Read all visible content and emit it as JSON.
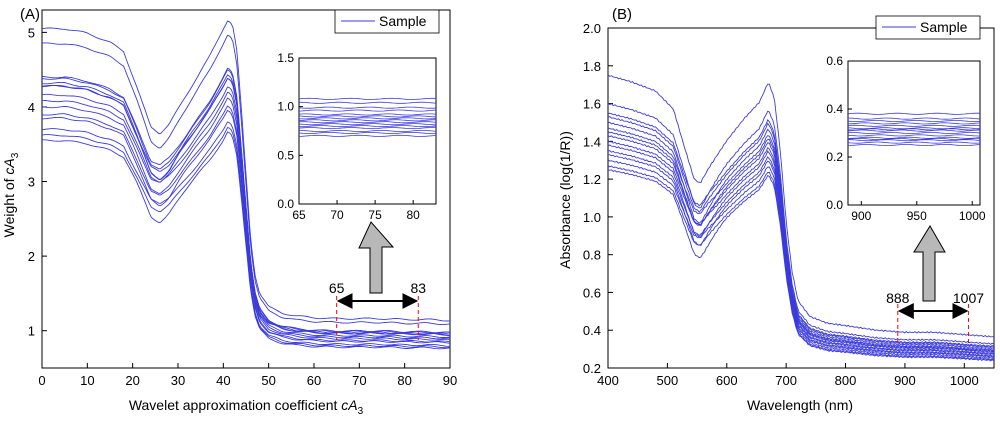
{
  "chart_data": [
    {
      "panel_label": "(A)",
      "type": "line",
      "title": "",
      "xlabel": "Wavelet approximation coefficient cA3",
      "xlabel_main": "Wavelet approximation coefficient ",
      "xlabel_var": "cA",
      "xlabel_sub": "3",
      "ylabel_main": "Weight of ",
      "ylabel_var": "cA",
      "ylabel_sub": "3",
      "xlim": [
        0,
        90
      ],
      "ylim": [
        0.5,
        5.3
      ],
      "xticks": [
        0,
        10,
        20,
        30,
        40,
        50,
        60,
        70,
        80,
        90
      ],
      "yticks": [
        1,
        2,
        3,
        4,
        5
      ],
      "legend": "Sample",
      "legend_position": "top-right",
      "color": "#3b3bdc",
      "profile": {
        "x": [
          0,
          5,
          10,
          15,
          18,
          21,
          24,
          26,
          28,
          31,
          34,
          37,
          40,
          41,
          42,
          43,
          44,
          45,
          46,
          47,
          48,
          50,
          53,
          56,
          60,
          65,
          70,
          75,
          80,
          85,
          90
        ],
        "y": [
          4.1,
          4.1,
          4.05,
          3.95,
          3.85,
          3.45,
          3.02,
          2.95,
          3.05,
          3.3,
          3.55,
          3.8,
          4.1,
          4.22,
          4.15,
          3.85,
          3.2,
          2.5,
          1.8,
          1.4,
          1.2,
          1.05,
          0.98,
          0.95,
          0.93,
          0.92,
          0.92,
          0.92,
          0.91,
          0.91,
          0.9
        ]
      },
      "series_variation": {
        "offsets": [
          0.95,
          0.75,
          0.3,
          0.28,
          0.22,
          0.18,
          0.18,
          0.06,
          -0.02,
          -0.1,
          -0.2,
          -0.25,
          -0.4,
          -0.48,
          -0.55
        ],
        "dip_extra": [
          0.0,
          -0.05,
          0.05,
          0.0,
          -0.1,
          0.05,
          -0.05,
          0.0,
          0.05,
          -0.05,
          0.0,
          -0.1,
          0.05,
          0.0,
          -0.1
        ]
      },
      "markers": {
        "start": 65,
        "end": 83,
        "start_label": "65",
        "end_label": "83"
      },
      "inset": {
        "xlim": [
          65,
          83
        ],
        "ylim": [
          0,
          1.5
        ],
        "xticks": [
          65,
          70,
          75,
          80
        ],
        "yticks": [
          0.0,
          0.5,
          1.0,
          1.5
        ],
        "ytick_labels": [
          "0.0",
          "0.5",
          "1.0",
          "1.5"
        ],
        "levels": [
          1.08,
          1.04,
          0.99,
          0.96,
          0.92,
          0.9,
          0.88,
          0.86,
          0.84,
          0.82,
          0.8,
          0.78,
          0.75,
          0.73,
          0.7
        ]
      }
    },
    {
      "panel_label": "(B)",
      "type": "line",
      "title": "",
      "xlabel": "Wavelength (nm)",
      "ylabel": "Absorbance (log(1/R))",
      "xlim": [
        400,
        1050
      ],
      "ylim": [
        0.2,
        2.0
      ],
      "xticks": [
        400,
        500,
        600,
        700,
        800,
        900,
        1000
      ],
      "yticks": [
        0.2,
        0.4,
        0.6,
        0.8,
        1.0,
        1.2,
        1.4,
        1.6,
        1.8,
        2.0
      ],
      "ytick_labels": [
        "0.2",
        "0.4",
        "0.6",
        "0.8",
        "1.0",
        "1.2",
        "1.4",
        "1.6",
        "1.8",
        "2.0"
      ],
      "legend": "Sample",
      "legend_position": "top-right",
      "color": "#3b3bdc",
      "profile": {
        "x": [
          400,
          440,
          480,
          510,
          530,
          545,
          555,
          570,
          600,
          630,
          655,
          670,
          680,
          690,
          700,
          710,
          720,
          740,
          770,
          800,
          850,
          900,
          950,
          1000,
          1050
        ],
        "y": [
          1.45,
          1.42,
          1.38,
          1.3,
          1.12,
          0.99,
          0.97,
          1.04,
          1.16,
          1.26,
          1.33,
          1.42,
          1.35,
          1.12,
          0.8,
          0.58,
          0.45,
          0.38,
          0.35,
          0.34,
          0.32,
          0.31,
          0.31,
          0.3,
          0.29
        ]
      },
      "series_variation": {
        "offsets": [
          0.3,
          0.15,
          0.1,
          0.08,
          0.05,
          0.02,
          0.0,
          -0.02,
          -0.05,
          -0.07,
          -0.1,
          -0.12,
          -0.15,
          -0.18,
          -0.2
        ],
        "dip_extra": [
          0.0,
          -0.03,
          0.02,
          0.0,
          -0.04,
          0.03,
          -0.02,
          0.0,
          0.02,
          -0.03,
          0.0,
          -0.04,
          0.02,
          0.0,
          -0.05
        ]
      },
      "markers": {
        "start": 888,
        "end": 1007,
        "start_label": "888",
        "end_label": "1007"
      },
      "inset": {
        "xlim": [
          888,
          1007
        ],
        "ylim": [
          0,
          0.6
        ],
        "xticks": [
          900,
          950,
          1000
        ],
        "yticks": [
          0.0,
          0.2,
          0.4,
          0.6
        ],
        "ytick_labels": [
          "0.0",
          "0.2",
          "0.4",
          "0.6"
        ],
        "levels": [
          0.38,
          0.36,
          0.35,
          0.34,
          0.33,
          0.32,
          0.315,
          0.31,
          0.3,
          0.29,
          0.28,
          0.275,
          0.27,
          0.26,
          0.25
        ]
      }
    }
  ]
}
